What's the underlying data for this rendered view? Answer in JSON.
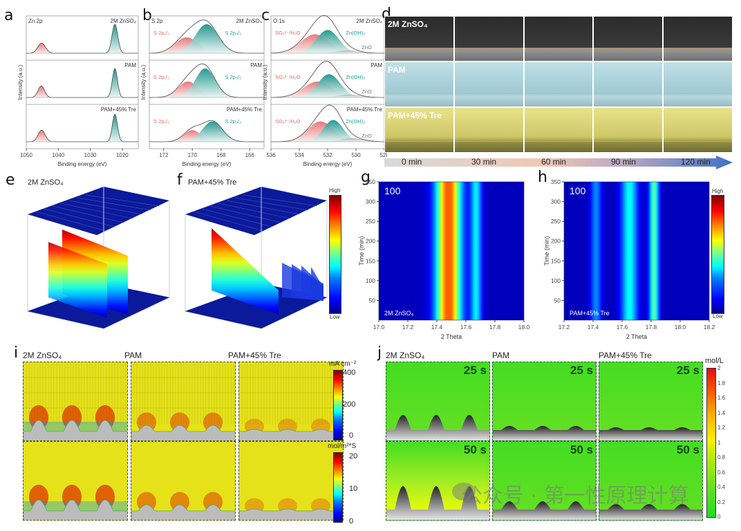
{
  "panels": {
    "a": {
      "letter": "a",
      "element": "Zn 2p",
      "samples": [
        "2M ZnSO₄",
        "PAM",
        "PAM+45% Tre"
      ]
    },
    "b": {
      "letter": "b",
      "element": "S 2p",
      "samples": [
        "2M ZnSO₄",
        "PAM",
        "PAM+45% Tre"
      ],
      "peak_labels": [
        "S 2p₁/₂",
        "S 2p₃/₂"
      ]
    },
    "c": {
      "letter": "c",
      "element": "O 1s",
      "samples": [
        "2M ZnSO₄",
        "PAM",
        "PAM+45% Tre"
      ],
      "peak_labels": [
        "SO₄²⁻/H₂O",
        "Zn(OH)₂",
        "ZnO"
      ]
    },
    "d": {
      "letter": "d",
      "rows": [
        "2M ZnSO₄",
        "PAM",
        "PAM+45% Tre"
      ],
      "times": [
        "0 min",
        "30 min",
        "60 min",
        "90 min",
        "120 min"
      ]
    },
    "e": {
      "letter": "e",
      "title": "2M ZnSO₄"
    },
    "f": {
      "letter": "f",
      "title": "PAM+45% Tre",
      "colorbar_high": "High",
      "colorbar_low": "Low"
    },
    "g": {
      "letter": "g",
      "corner_label": "100",
      "sample": "2M ZnSO₄"
    },
    "h": {
      "letter": "h",
      "corner_label": "100",
      "sample": "PAM+45% Tre",
      "colorbar_high": "High",
      "colorbar_low": "Low"
    },
    "i": {
      "letter": "i",
      "columns": [
        "2M ZnSO₄",
        "PAM",
        "PAM+45% Tre"
      ],
      "cbar1_unit": "mA cm⁻²",
      "cbar1_ticks": [
        "400",
        "200",
        "0"
      ],
      "cbar2_unit": "mol/m²*S",
      "cbar2_ticks": [
        "20",
        "10",
        "0"
      ]
    },
    "j": {
      "letter": "j",
      "columns": [
        "2M ZnSO₄",
        "PAM",
        "PAM+45% Tre"
      ],
      "times": [
        "25 s",
        "50 s"
      ],
      "cbar_unit": "mol/L",
      "cbar_ticks": [
        "2",
        "1.8",
        "1.6",
        "1.4",
        "1.2",
        "1",
        "0.8",
        "0.6",
        "0.4",
        "0.2",
        "0"
      ]
    }
  },
  "watermark": "公众号 · 第一性原理计算",
  "chart_data": [
    {
      "id": "a",
      "type": "line",
      "title": "Zn 2p",
      "xlabel": "Binding energy (eV)",
      "ylabel": "Intensity (a.u.)",
      "xlim": [
        1050,
        1015
      ],
      "xticks": [
        "1050",
        "1040",
        "1030",
        "1020"
      ],
      "series": [
        {
          "name": "2M ZnSO₄",
          "peaks": [
            {
              "center": 1045.2,
              "height": 0.35,
              "width": 1.2
            },
            {
              "center": 1022.3,
              "height": 1.0,
              "width": 0.9
            }
          ]
        },
        {
          "name": "PAM",
          "peaks": [
            {
              "center": 1045.3,
              "height": 0.4,
              "width": 1.0
            },
            {
              "center": 1022.3,
              "height": 1.0,
              "width": 0.8
            }
          ]
        },
        {
          "name": "PAM+45% Tre",
          "peaks": [
            {
              "center": 1045.2,
              "height": 0.4,
              "width": 1.1
            },
            {
              "center": 1022.3,
              "height": 0.95,
              "width": 0.8
            }
          ]
        }
      ]
    },
    {
      "id": "b",
      "type": "line",
      "title": "S 2p",
      "xlabel": "Binding energy (eV)",
      "ylabel": "Intensity (a.u.)",
      "xlim": [
        173,
        165
      ],
      "xticks": [
        "172",
        "170",
        "168",
        "166"
      ],
      "series": [
        {
          "name": "2M ZnSO₄",
          "peaks": [
            {
              "label": "S 2p1/2",
              "center": 170.4,
              "height": 0.55,
              "width": 0.8
            },
            {
              "label": "S 2p3/2",
              "center": 169.0,
              "height": 1.0,
              "width": 0.8
            }
          ]
        },
        {
          "name": "PAM",
          "peaks": [
            {
              "label": "S 2p1/2",
              "center": 170.3,
              "height": 0.55,
              "width": 0.7
            },
            {
              "label": "S 2p3/2",
              "center": 169.1,
              "height": 1.0,
              "width": 0.7
            }
          ]
        },
        {
          "name": "PAM+45% Tre",
          "peaks": [
            {
              "label": "S 2p1/2",
              "center": 170.0,
              "height": 0.4,
              "width": 0.6
            },
            {
              "label": "S 2p3/2",
              "center": 168.6,
              "height": 0.7,
              "width": 0.7
            }
          ]
        }
      ]
    },
    {
      "id": "c",
      "type": "line",
      "title": "O 1s",
      "xlabel": "Binding energy (eV)",
      "ylabel": "Intensity (a.u.)",
      "xlim": [
        536,
        528
      ],
      "xticks": [
        "536",
        "534",
        "532",
        "530",
        "528"
      ],
      "series": [
        {
          "name": "2M ZnSO₄",
          "peaks": [
            {
              "label": "SO4 2-/H2O",
              "center": 532.9,
              "height": 0.65,
              "width": 1.0
            },
            {
              "label": "Zn(OH)2",
              "center": 532.0,
              "height": 0.8,
              "width": 0.8
            },
            {
              "label": "ZnO",
              "center": 530.6,
              "height": 0.1,
              "width": 0.8
            }
          ]
        },
        {
          "name": "PAM",
          "peaks": [
            {
              "label": "SO4 2-/H2O",
              "center": 532.7,
              "height": 0.55,
              "width": 1.0
            },
            {
              "label": "Zn(OH)2",
              "center": 531.9,
              "height": 0.8,
              "width": 0.8
            },
            {
              "label": "ZnO",
              "center": 530.5,
              "height": 0.1,
              "width": 0.8
            }
          ]
        },
        {
          "name": "PAM+45% Tre",
          "peaks": [
            {
              "label": "SO4 2-/H2O",
              "center": 532.5,
              "height": 0.7,
              "width": 0.9
            },
            {
              "label": "Zn(OH)2",
              "center": 531.6,
              "height": 0.75,
              "width": 0.7
            },
            {
              "label": "ZnO",
              "center": 530.3,
              "height": 0.12,
              "width": 0.8
            }
          ]
        }
      ]
    },
    {
      "id": "g",
      "type": "heatmap",
      "xlabel": "2 Theta",
      "ylabel": "Time (min)",
      "xlim": [
        17.0,
        18.0
      ],
      "ylim": [
        0,
        350
      ],
      "xticks": [
        "17.0",
        "17.2",
        "17.4",
        "17.6",
        "17.8",
        "18.0"
      ],
      "yticks": [
        "50",
        "100",
        "150",
        "200",
        "250",
        "300",
        "350"
      ],
      "bands": [
        {
          "center": 17.48,
          "width": 0.09,
          "intensity": 0.75
        },
        {
          "center": 17.67,
          "width": 0.04,
          "intensity": 0.3
        }
      ]
    },
    {
      "id": "h",
      "type": "heatmap",
      "xlabel": "2 Theta",
      "ylabel": "Time (min)",
      "xlim": [
        17.2,
        18.2
      ],
      "ylim": [
        0,
        350
      ],
      "xticks": [
        "17.2",
        "17.4",
        "17.6",
        "17.8",
        "18.0",
        "18.2"
      ],
      "yticks": [
        "50",
        "100",
        "150",
        "200",
        "250",
        "300",
        "350"
      ],
      "bands": [
        {
          "center": 17.42,
          "width": 0.04,
          "intensity": 0.2
        },
        {
          "center": 17.65,
          "width": 0.06,
          "intensity": 0.32
        },
        {
          "center": 17.82,
          "width": 0.035,
          "intensity": 0.4
        }
      ]
    }
  ]
}
